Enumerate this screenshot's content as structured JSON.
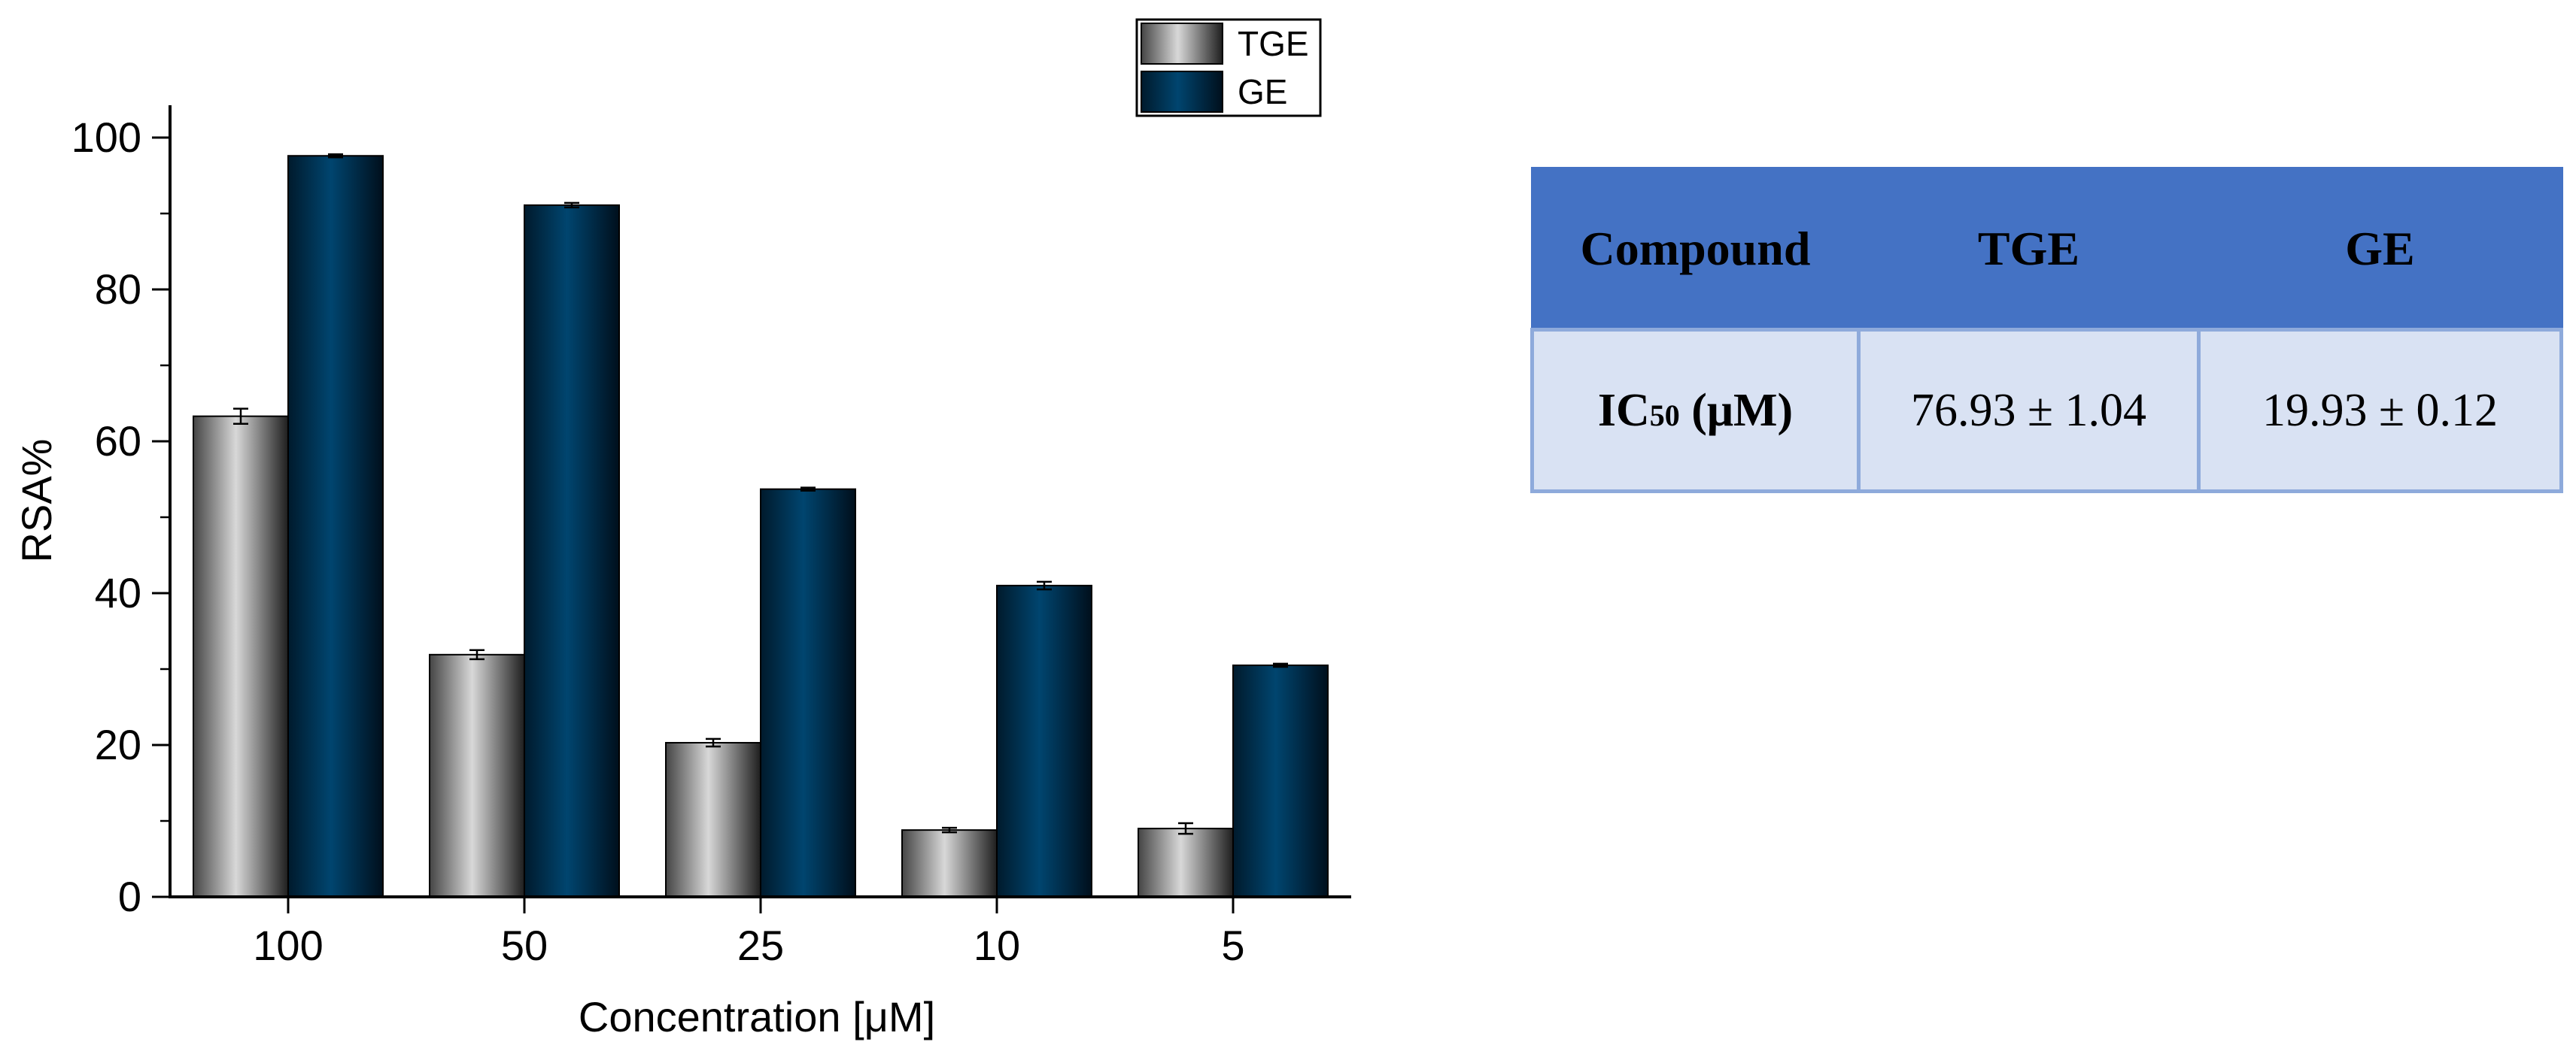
{
  "chart_data": {
    "type": "bar",
    "title": "",
    "xlabel": "Concentration [μM]",
    "ylabel": "RSA%",
    "categories": [
      "100",
      "50",
      "25",
      "10",
      "5"
    ],
    "ylim": [
      0,
      105
    ],
    "yticks": [
      "0",
      "20",
      "40",
      "60",
      "80",
      "100"
    ],
    "legend_position": "top-right",
    "grid": false,
    "series": [
      {
        "name": "TGE",
        "values": [
          63.3,
          31.9,
          20.3,
          8.8,
          9.0
        ],
        "errors": [
          1.0,
          0.6,
          0.5,
          0.3,
          0.7
        ],
        "color": "#9e9e9e"
      },
      {
        "name": "GE",
        "values": [
          97.6,
          91.1,
          53.7,
          41.0,
          30.5
        ],
        "errors": [
          0.2,
          0.3,
          0.2,
          0.5,
          0.2
        ],
        "color": "#003f68"
      }
    ]
  },
  "table": {
    "headers": [
      "Compound",
      "TGE",
      "GE"
    ],
    "row_label_main": "IC",
    "row_label_sub": "50",
    "row_label_unit": " (μM)",
    "values": [
      "76.93 ± 1.04",
      "19.93 ± 0.12"
    ],
    "colors": {
      "header_bg": "#4472c4",
      "cell_bg": "#d9e2f3",
      "border": "#8eaadb"
    }
  }
}
